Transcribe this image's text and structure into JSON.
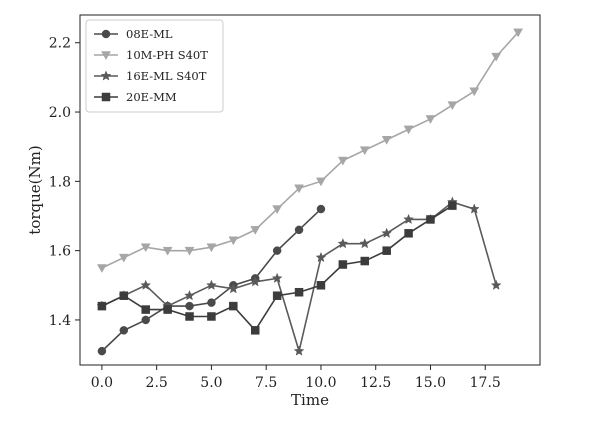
{
  "chart_data": {
    "type": "line",
    "xlabel": "Time",
    "ylabel": "torque(Nm)",
    "xlim": [
      -1,
      20
    ],
    "ylim": [
      1.27,
      2.28
    ],
    "xticks": [
      0.0,
      2.5,
      5.0,
      7.5,
      10.0,
      12.5,
      15.0,
      17.5
    ],
    "xtick_labels": [
      "0.0",
      "2.5",
      "5.0",
      "7.5",
      "10.0",
      "12.5",
      "15.0",
      "17.5"
    ],
    "yticks": [
      1.4,
      1.6,
      1.8,
      2.0,
      2.2
    ],
    "ytick_labels": [
      "1.4",
      "1.6",
      "1.8",
      "2.0",
      "2.2"
    ],
    "grid": false,
    "legend_position": "top-left",
    "series": [
      {
        "name": "08E-ML",
        "marker": "circle",
        "color": "#4a4a4a",
        "x": [
          0,
          1,
          2,
          3,
          4,
          5,
          6,
          7,
          8,
          9,
          10
        ],
        "y": [
          1.31,
          1.37,
          1.4,
          1.44,
          1.44,
          1.45,
          1.5,
          1.52,
          1.6,
          1.66,
          1.72
        ]
      },
      {
        "name": "10M-PH S40T",
        "marker": "triangle-down",
        "color": "#a6a6a6",
        "x": [
          0,
          1,
          2,
          3,
          4,
          5,
          6,
          7,
          8,
          9,
          10,
          11,
          12,
          13,
          14,
          15,
          16,
          17,
          18,
          19
        ],
        "y": [
          1.55,
          1.58,
          1.61,
          1.6,
          1.6,
          1.61,
          1.63,
          1.66,
          1.72,
          1.78,
          1.8,
          1.86,
          1.89,
          1.92,
          1.95,
          1.98,
          2.02,
          2.06,
          2.16,
          2.23
        ]
      },
      {
        "name": "16E-ML S40T",
        "marker": "star",
        "color": "#5a5a5a",
        "x": [
          0,
          1,
          2,
          3,
          4,
          5,
          6,
          7,
          8,
          9,
          10,
          11,
          12,
          13,
          14,
          15,
          16,
          17,
          18
        ],
        "y": [
          1.44,
          1.47,
          1.5,
          1.44,
          1.47,
          1.5,
          1.49,
          1.51,
          1.52,
          1.31,
          1.58,
          1.62,
          1.62,
          1.65,
          1.69,
          1.69,
          1.74,
          1.72,
          1.5
        ]
      },
      {
        "name": "20E-MM",
        "marker": "square",
        "color": "#3c3c3c",
        "x": [
          0,
          1,
          2,
          3,
          4,
          5,
          6,
          7,
          8,
          9,
          10,
          11,
          12,
          13,
          14,
          15,
          16
        ],
        "y": [
          1.44,
          1.47,
          1.43,
          1.43,
          1.41,
          1.41,
          1.44,
          1.37,
          1.47,
          1.48,
          1.5,
          1.56,
          1.57,
          1.6,
          1.65,
          1.69,
          1.73
        ]
      }
    ]
  }
}
